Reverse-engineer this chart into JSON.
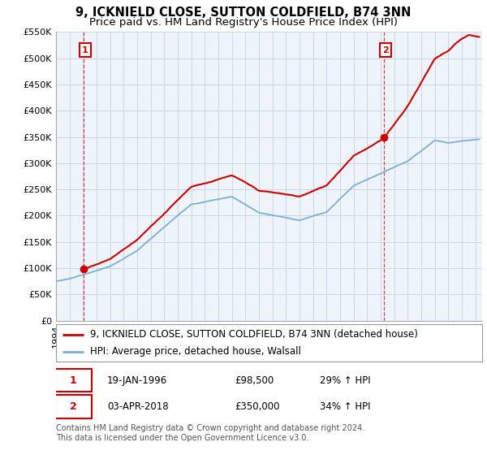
{
  "title": "9, ICKNIELD CLOSE, SUTTON COLDFIELD, B74 3NN",
  "subtitle": "Price paid vs. HM Land Registry's House Price Index (HPI)",
  "ylim": [
    0,
    550000
  ],
  "yticks": [
    0,
    50000,
    100000,
    150000,
    200000,
    250000,
    300000,
    350000,
    400000,
    450000,
    500000,
    550000
  ],
  "ytick_labels": [
    "£0",
    "£50K",
    "£100K",
    "£150K",
    "£200K",
    "£250K",
    "£300K",
    "£350K",
    "£400K",
    "£450K",
    "£500K",
    "£550K"
  ],
  "sale1_year": 1996.052,
  "sale1_price": 98500,
  "sale2_year": 2018.253,
  "sale2_price": 350000,
  "line_color_house": "#cc0000",
  "line_color_hpi": "#7ab0d4",
  "marker_color": "#cc0000",
  "dashed_line_color": "#cc0000",
  "legend_label_house": "9, ICKNIELD CLOSE, SUTTON COLDFIELD, B74 3NN (detached house)",
  "legend_label_hpi": "HPI: Average price, detached house, Walsall",
  "copyright_text": "Contains HM Land Registry data © Crown copyright and database right 2024.\nThis data is licensed under the Open Government Licence v3.0.",
  "background_color": "#ffffff",
  "plot_bg_color": "#ffffff",
  "grid_color": "#c8d8e8",
  "xlim_start": 1994.0,
  "xlim_end": 2025.5,
  "title_fontsize": 10.5,
  "subtitle_fontsize": 9.5,
  "tick_fontsize": 8,
  "legend_fontsize": 8.5,
  "annotation_fontsize": 8.5
}
